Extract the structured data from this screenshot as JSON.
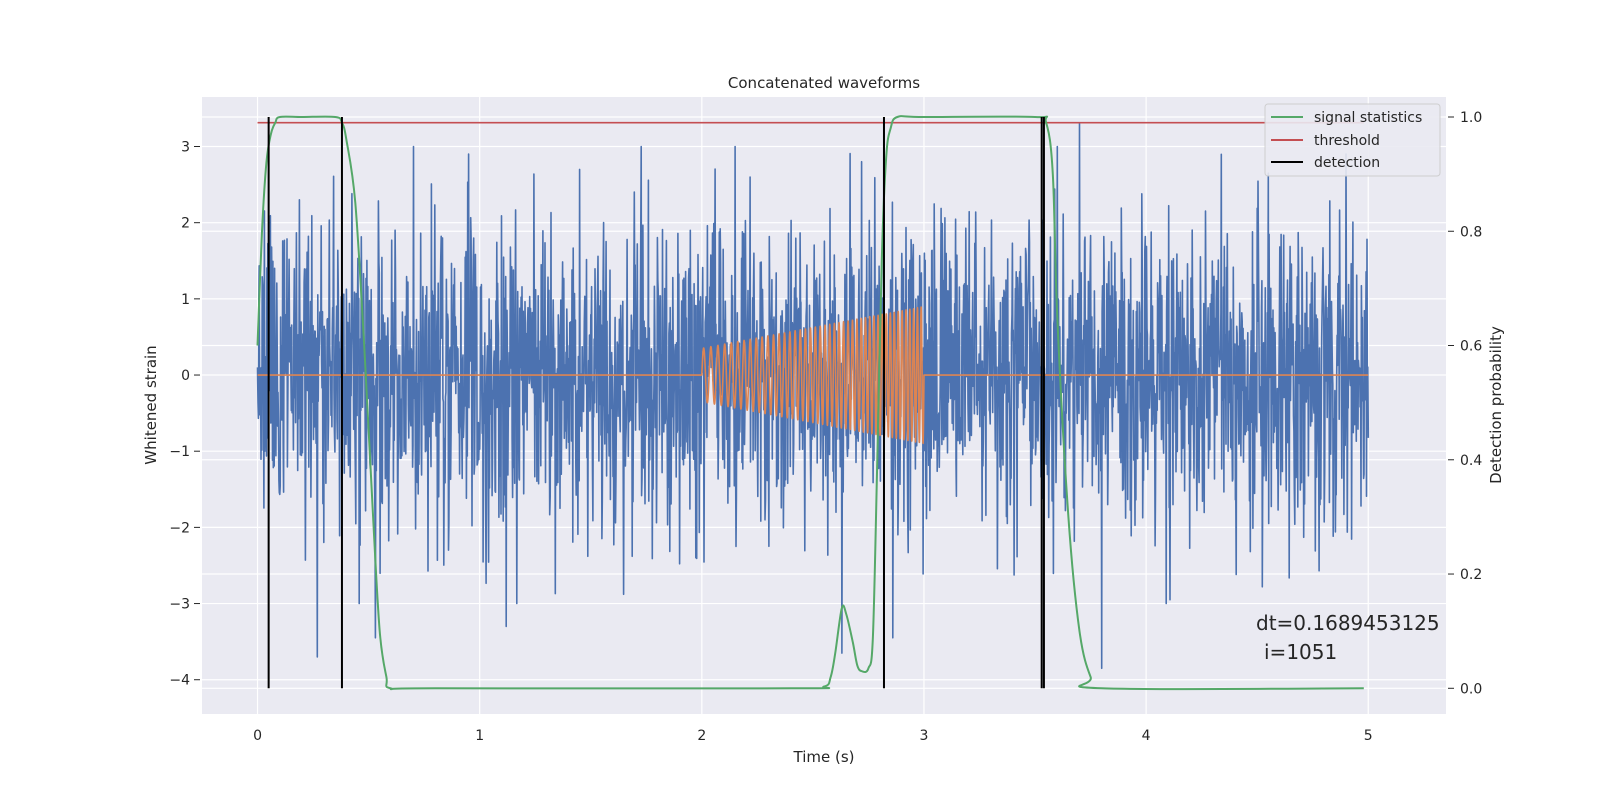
{
  "chart_data": {
    "type": "line",
    "title": "Concatenated waveforms",
    "xlabel": "Time (s)",
    "ylabel": "Whitened strain",
    "ylabel_right": "Detection probability",
    "xlim": [
      -0.25,
      5.35
    ],
    "ylim": [
      -4.45,
      3.65
    ],
    "ylim_right": [
      -0.045,
      1.035
    ],
    "xticks": [
      0,
      1,
      2,
      3,
      4,
      5
    ],
    "xtick_labels": [
      "0",
      "1",
      "2",
      "3",
      "4",
      "5"
    ],
    "yticks": [
      3,
      2,
      1,
      0,
      -1,
      -2,
      -3,
      -4
    ],
    "ytick_labels": [
      "3",
      "2",
      "1",
      "0",
      "−1",
      "−2",
      "−3",
      "−4"
    ],
    "yticks_right": [
      1.0,
      0.8,
      0.6,
      0.4,
      0.2,
      0.0
    ],
    "ytick_labels_right": [
      "1.0",
      "0.8",
      "0.6",
      "0.4",
      "0.2",
      "0.0"
    ],
    "grid": true,
    "legend_position": "top-right",
    "colors": {
      "background": "#eaeaf2",
      "grid": "#ffffff",
      "strain": "#4c72b0",
      "template": "#dd8452",
      "signal_statistics": "#55a868",
      "threshold": "#c44e52",
      "detection": "#000000"
    },
    "series": [
      {
        "key": "whitened_strain",
        "axis": "left",
        "x_range": [
          0,
          5
        ],
        "envelope_typical": 1.2,
        "peaks": [
          {
            "x": 0.27,
            "y": -3.7
          },
          {
            "x": 0.53,
            "y": -3.45
          },
          {
            "x": 0.95,
            "y": 2.9
          },
          {
            "x": 1.12,
            "y": -3.3
          },
          {
            "x": 1.45,
            "y": 2.7
          },
          {
            "x": 2.15,
            "y": 3.0
          },
          {
            "x": 2.63,
            "y": -3.65
          },
          {
            "x": 2.72,
            "y": 2.8
          },
          {
            "x": 2.82,
            "y": 3.2
          },
          {
            "x": 2.86,
            "y": -3.45
          },
          {
            "x": 3.6,
            "y": 3.0
          },
          {
            "x": 3.7,
            "y": 3.3
          },
          {
            "x": 3.8,
            "y": -3.85
          },
          {
            "x": 4.55,
            "y": 2.65
          },
          {
            "x": 4.9,
            "y": 2.9
          }
        ]
      },
      {
        "key": "template",
        "axis": "left",
        "x_range": [
          0,
          5
        ],
        "chirp_start": 2.0,
        "chirp_end": 3.0,
        "amplitude_start": 0.35,
        "amplitude_end": 0.9,
        "frequency_start_hz": 30,
        "frequency_end_hz": 60
      },
      {
        "name": "signal statistics",
        "axis": "right",
        "x": [
          0.0,
          0.02,
          0.04,
          0.06,
          0.08,
          0.1,
          0.2,
          0.35,
          0.38,
          0.4,
          0.44,
          0.48,
          0.52,
          0.55,
          0.58,
          0.6,
          0.8,
          2.4,
          2.55,
          2.58,
          2.6,
          2.63,
          2.65,
          2.68,
          2.7,
          2.72,
          2.75,
          2.77,
          2.79,
          2.81,
          2.83,
          2.85,
          2.88,
          3.0,
          3.5,
          3.55,
          3.58,
          3.6,
          3.65,
          3.7,
          3.75,
          3.8,
          4.98
        ],
        "y": [
          0.6,
          0.8,
          0.92,
          0.97,
          0.99,
          1.0,
          1.0,
          1.0,
          0.99,
          0.96,
          0.85,
          0.6,
          0.3,
          0.1,
          0.02,
          0.0,
          0.0,
          0.0,
          0.003,
          0.02,
          0.06,
          0.14,
          0.13,
          0.08,
          0.04,
          0.03,
          0.035,
          0.09,
          0.4,
          0.75,
          0.93,
          0.98,
          1.0,
          1.0,
          1.0,
          0.99,
          0.9,
          0.65,
          0.3,
          0.1,
          0.02,
          0.0,
          0.0
        ]
      },
      {
        "name": "threshold",
        "axis": "right",
        "x": [
          0,
          4.98
        ],
        "y": [
          0.99,
          0.99
        ]
      },
      {
        "name": "detection",
        "axis": "right",
        "x_positions": [
          0.05,
          0.38,
          2.82,
          3.53,
          3.54
        ],
        "y_range": [
          0.0,
          1.0
        ]
      }
    ],
    "annotation": {
      "line1": "dt=0.1689453125",
      "line2": "i=1051"
    }
  }
}
